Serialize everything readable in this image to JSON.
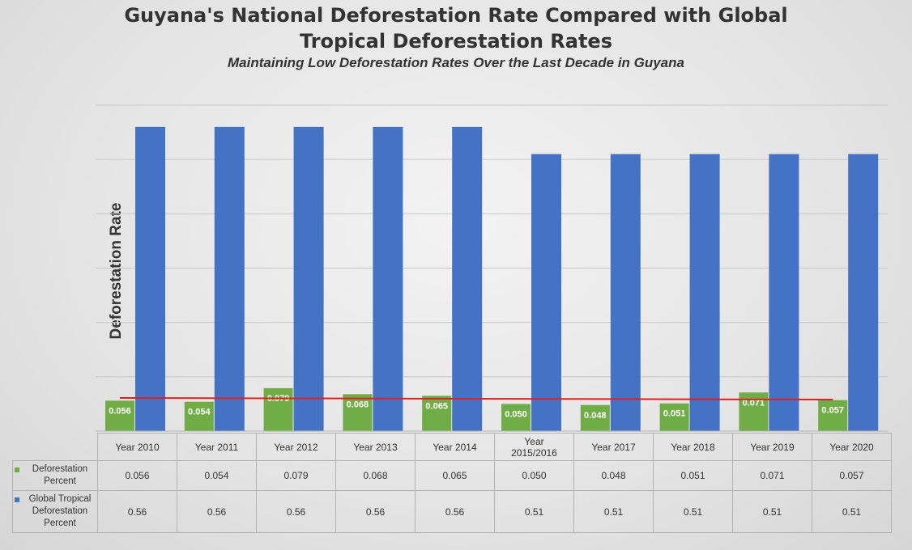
{
  "chart_data": {
    "type": "bar",
    "title": "Guyana's National Deforestation Rate Compared with Global Tropical Deforestation Rates",
    "subtitle": "Maintaining Low Deforestation Rates Over the Last Decade in Guyana",
    "ylabel": "Deforestation Rate",
    "xlabel": "",
    "ylim": [
      0,
      0.6
    ],
    "grid": true,
    "legend": "data-table-left",
    "categories": [
      "Year 2010",
      "Year 2011",
      "Year 2012",
      "Year 2013",
      "Year 2014",
      "Year 2015/2016",
      "Year 2017",
      "Year 2018",
      "Year 2019",
      "Year 2020"
    ],
    "series": [
      {
        "name": "Deforestation Percent",
        "color": "#70ad47",
        "values": [
          0.056,
          0.054,
          0.079,
          0.068,
          0.065,
          0.05,
          0.048,
          0.051,
          0.071,
          0.057
        ],
        "labels": [
          "0.056",
          "0.054",
          "0.079",
          "0.068",
          "0.065",
          "0.050",
          "0.048",
          "0.051",
          "0.071",
          "0.057"
        ]
      },
      {
        "name": "Global Tropical Deforestation Percent",
        "color": "#4472c4",
        "values": [
          0.56,
          0.56,
          0.56,
          0.56,
          0.56,
          0.51,
          0.51,
          0.51,
          0.51,
          0.51
        ],
        "labels": [
          "0.56",
          "0.56",
          "0.56",
          "0.56",
          "0.56",
          "0.51",
          "0.51",
          "0.51",
          "0.51",
          "0.51"
        ]
      }
    ],
    "trendline": {
      "series": "Deforestation Percent",
      "color": "#e02020",
      "start": 0.061,
      "end": 0.058
    }
  }
}
